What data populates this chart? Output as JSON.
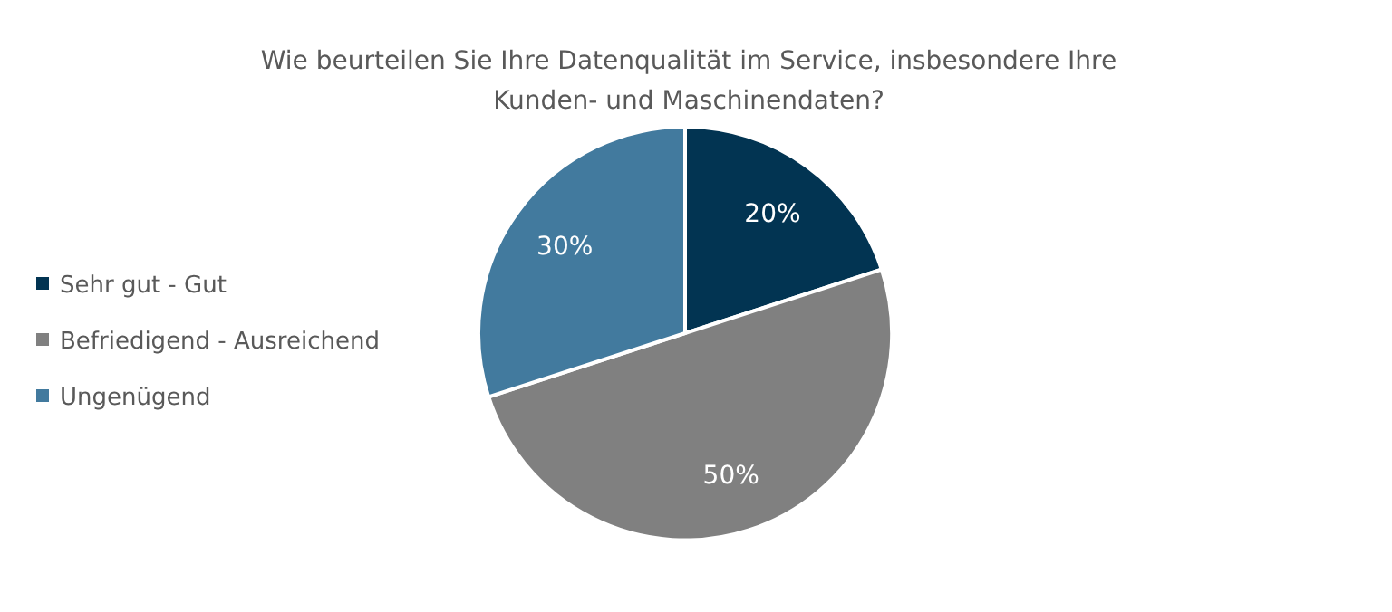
{
  "chart_data": {
    "type": "pie",
    "title": "Wie beurteilen Sie Ihre Datenqualität im Service, insbesondere Ihre Kunden- und Maschinendaten?",
    "categories": [
      "Sehr gut - Gut",
      "Befriedigend - Ausreichend",
      "Ungenügend"
    ],
    "values": [
      20,
      50,
      30
    ],
    "colors": [
      "#023452",
      "#808080",
      "#427a9e"
    ],
    "value_labels": [
      "20%",
      "50%",
      "30%"
    ],
    "legend": "left"
  }
}
